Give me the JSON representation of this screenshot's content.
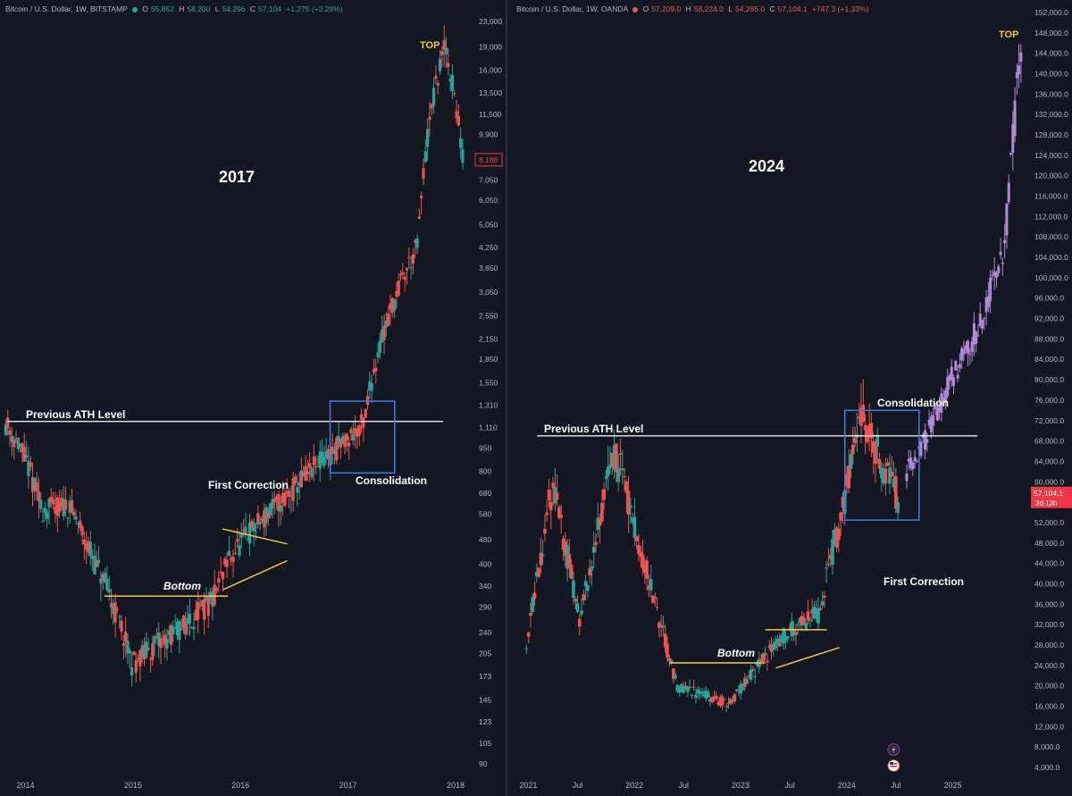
{
  "colors": {
    "background": "#131722",
    "up": "#26a69a",
    "down": "#ef5350",
    "projection": "#b388d9",
    "annotation_yellow": "#f4c542",
    "box_blue": "#3d7ee8",
    "ath_line": "#ffffff",
    "axis_text": "#b2b5be",
    "price_tag": "#f23645"
  },
  "icons": [
    "lightning-icon",
    "us-flag-icon"
  ],
  "chart_data": [
    {
      "type": "candlestick",
      "title": "2017",
      "header": {
        "symbol": "Bitcoin / U.S. Dollar, 1W, BITSTAMP",
        "O": "55,852",
        "H": "58,200",
        "L": "54,296",
        "C": "57,104",
        "change": "+1,275 (+2.28%)"
      },
      "yscale": "log",
      "ylim": [
        80,
        26000
      ],
      "y_ticks": [
        "23,000",
        "19,000",
        "16,000",
        "13,500",
        "11,500",
        "9,900",
        "7,050",
        "6,050",
        "5,050",
        "4,250",
        "3,650",
        "3,050",
        "2,550",
        "2,150",
        "1,850",
        "1,550",
        "1,310",
        "1,110",
        "950",
        "800",
        "680",
        "580",
        "480",
        "400",
        "340",
        "290",
        "240",
        "205",
        "173",
        "145",
        "123",
        "105",
        "90"
      ],
      "x_ticks": [
        "2014",
        "2015",
        "2016",
        "2017",
        "2018"
      ],
      "price_tag": "8,188",
      "series": [
        {
          "x": "2013-11",
          "y": 1150
        },
        {
          "x": "2014-01",
          "y": 900
        },
        {
          "x": "2014-03",
          "y": 600
        },
        {
          "x": "2014-06",
          "y": 620
        },
        {
          "x": "2014-09",
          "y": 400
        },
        {
          "x": "2015-01",
          "y": 190
        },
        {
          "x": "2015-06",
          "y": 240
        },
        {
          "x": "2015-10",
          "y": 300
        },
        {
          "x": "2015-12",
          "y": 420
        },
        {
          "x": "2016-06",
          "y": 650
        },
        {
          "x": "2016-12",
          "y": 950
        },
        {
          "x": "2017-03",
          "y": 1150
        },
        {
          "x": "2017-06",
          "y": 2700
        },
        {
          "x": "2017-09",
          "y": 4300
        },
        {
          "x": "2017-12",
          "y": 19000
        },
        {
          "x": "2018-02",
          "y": 8188
        }
      ],
      "annotations": {
        "ath_label": "Previous ATH Level",
        "bottom": "Bottom",
        "first_correction": "First Correction",
        "consolidation": "Consolidation",
        "top": "TOP"
      }
    },
    {
      "type": "candlestick",
      "title": "2024",
      "header": {
        "symbol": "Bitcoin / U.S. Dollar, 1W, OANDA",
        "O": "57,209.0",
        "H": "58,224.0",
        "L": "54,285.0",
        "C": "57,104.1",
        "change": "+747.3 (+1.33%)"
      },
      "yscale": "linear",
      "ylim": [
        2000,
        153000
      ],
      "y_ticks": [
        "152,000.0",
        "148,000.0",
        "144,000.0",
        "140,000.0",
        "136,000.0",
        "132,000.0",
        "128,000.0",
        "124,000.0",
        "120,000.0",
        "116,000.0",
        "112,000.0",
        "108,000.0",
        "104,000.0",
        "100,000.0",
        "96,000.0",
        "92,000.0",
        "88,000.0",
        "84,000.0",
        "80,000.0",
        "76,000.0",
        "72,000.0",
        "68,000.0",
        "64,000.0",
        "60,000.0",
        "56,000.0",
        "52,000.0",
        "48,000.0",
        "44,000.0",
        "40,000.0",
        "36,000.0",
        "32,000.0",
        "28,000.0",
        "24,000.0",
        "20,000.0",
        "16,000.0",
        "12,000.0",
        "8,000.0",
        "4,000.0"
      ],
      "x_ticks": [
        "2021",
        "Jul",
        "2022",
        "Jul",
        "2023",
        "Jul",
        "2024",
        "Jul",
        "2025"
      ],
      "price_tag": "57,104.1",
      "price_tag_sub": "3d 13h",
      "series": [
        {
          "x": "2021-01",
          "y": 29000
        },
        {
          "x": "2021-04",
          "y": 60000
        },
        {
          "x": "2021-07",
          "y": 33000
        },
        {
          "x": "2021-11",
          "y": 66000
        },
        {
          "x": "2022-06",
          "y": 20000
        },
        {
          "x": "2022-12",
          "y": 16500
        },
        {
          "x": "2023-06",
          "y": 30000
        },
        {
          "x": "2023-10",
          "y": 34000
        },
        {
          "x": "2024-03",
          "y": 72000
        },
        {
          "x": "2024-07",
          "y": 57104
        }
      ],
      "projection": [
        {
          "x": "2024-08",
          "y": 62000
        },
        {
          "x": "2024-10",
          "y": 68000
        },
        {
          "x": "2025-01",
          "y": 80000
        },
        {
          "x": "2025-04",
          "y": 90000
        },
        {
          "x": "2025-07",
          "y": 105000
        },
        {
          "x": "2025-09",
          "y": 148000
        }
      ],
      "annotations": {
        "ath_label": "Previous ATH Level",
        "bottom": "Bottom",
        "first_correction": "First Correction",
        "consolidation": "Consolidation",
        "top": "TOP"
      }
    }
  ]
}
